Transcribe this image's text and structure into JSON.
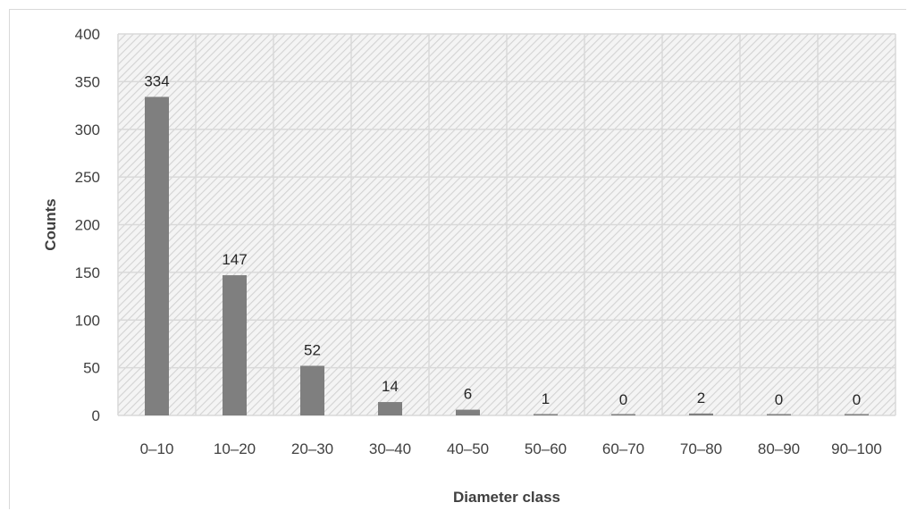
{
  "chart_data": {
    "type": "bar",
    "categories": [
      "0–10",
      "10–20",
      "20–30",
      "30–40",
      "40–50",
      "50–60",
      "60–70",
      "70–80",
      "80–90",
      "90–100"
    ],
    "values": [
      334,
      147,
      52,
      14,
      6,
      1,
      0,
      2,
      0,
      0
    ],
    "data_labels": [
      "334",
      "147",
      "52",
      "14",
      "6",
      "1",
      "0",
      "2",
      "0",
      "0"
    ],
    "xlabel": "Diameter class",
    "ylabel": "Counts",
    "ylim": [
      0,
      400
    ],
    "yticks": [
      "0",
      "50",
      "100",
      "150",
      "200",
      "250",
      "300",
      "350",
      "400"
    ],
    "grid": true,
    "bar_color": "#7f7f7f",
    "plot_background": "hatched-light-gray"
  }
}
